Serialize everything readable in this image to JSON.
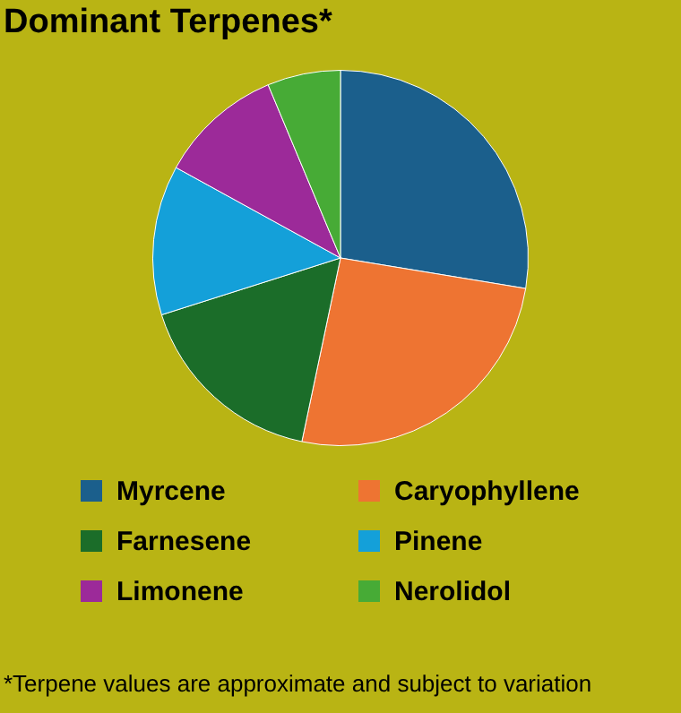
{
  "chart_data": {
    "type": "pie",
    "title": "Dominant Terpenes*",
    "categories": [
      "Myrcene",
      "Caryophyllene",
      "Farnesene",
      "Pinene",
      "Limonene",
      "Nerolidol"
    ],
    "values": [
      27.6,
      25.7,
      16.8,
      12.9,
      10.7,
      6.3
    ],
    "colors": [
      "#1b5f8c",
      "#ee7432",
      "#1b6d29",
      "#14a0d9",
      "#9c2a99",
      "#47ab36"
    ],
    "legend": "bottom",
    "annotations": [
      "*Terpene values are approximate and subject to variation"
    ]
  }
}
